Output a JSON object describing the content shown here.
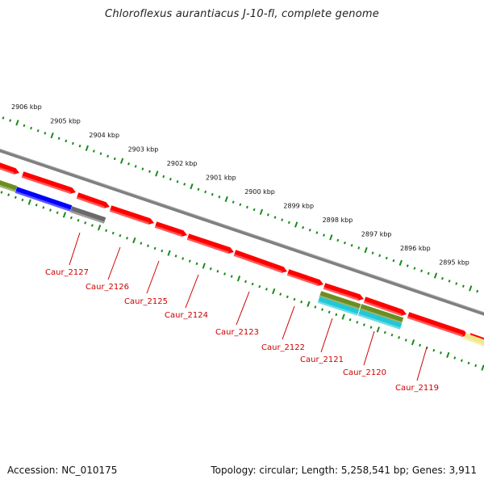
{
  "title": "Chloroflexus aurantiacus J-10-fl, complete genome",
  "footer": {
    "accession": "Accession: NC_010175",
    "summary": "Topology: circular; Length: 5,258,541 bp; Genes: 3,911"
  },
  "scale": {
    "unit": "kbp",
    "labels": [
      "2906 kbp",
      "2905 kbp",
      "2904 kbp",
      "2903 kbp",
      "2902 kbp",
      "2901 kbp",
      "2900 kbp",
      "2899 kbp",
      "2898 kbp",
      "2897 kbp",
      "2896 kbp",
      "2895 kbp"
    ]
  },
  "gene_labels": [
    "Caur_2127",
    "Caur_2126",
    "Caur_2125",
    "Caur_2124",
    "Caur_2123",
    "Caur_2122",
    "Caur_2121",
    "Caur_2120",
    "Caur_2119"
  ],
  "colors": {
    "gene_red": "#ff0000",
    "gene_blue": "#0000ff",
    "gene_gray": "#6a6a6a",
    "gene_olive": "#6b8e23",
    "gene_cyan": "#20c8d8",
    "gene_yellow": "#f0e68c",
    "backbone": "#808080",
    "ticks": "#1a8a1a",
    "label_red": "#cc0000"
  }
}
